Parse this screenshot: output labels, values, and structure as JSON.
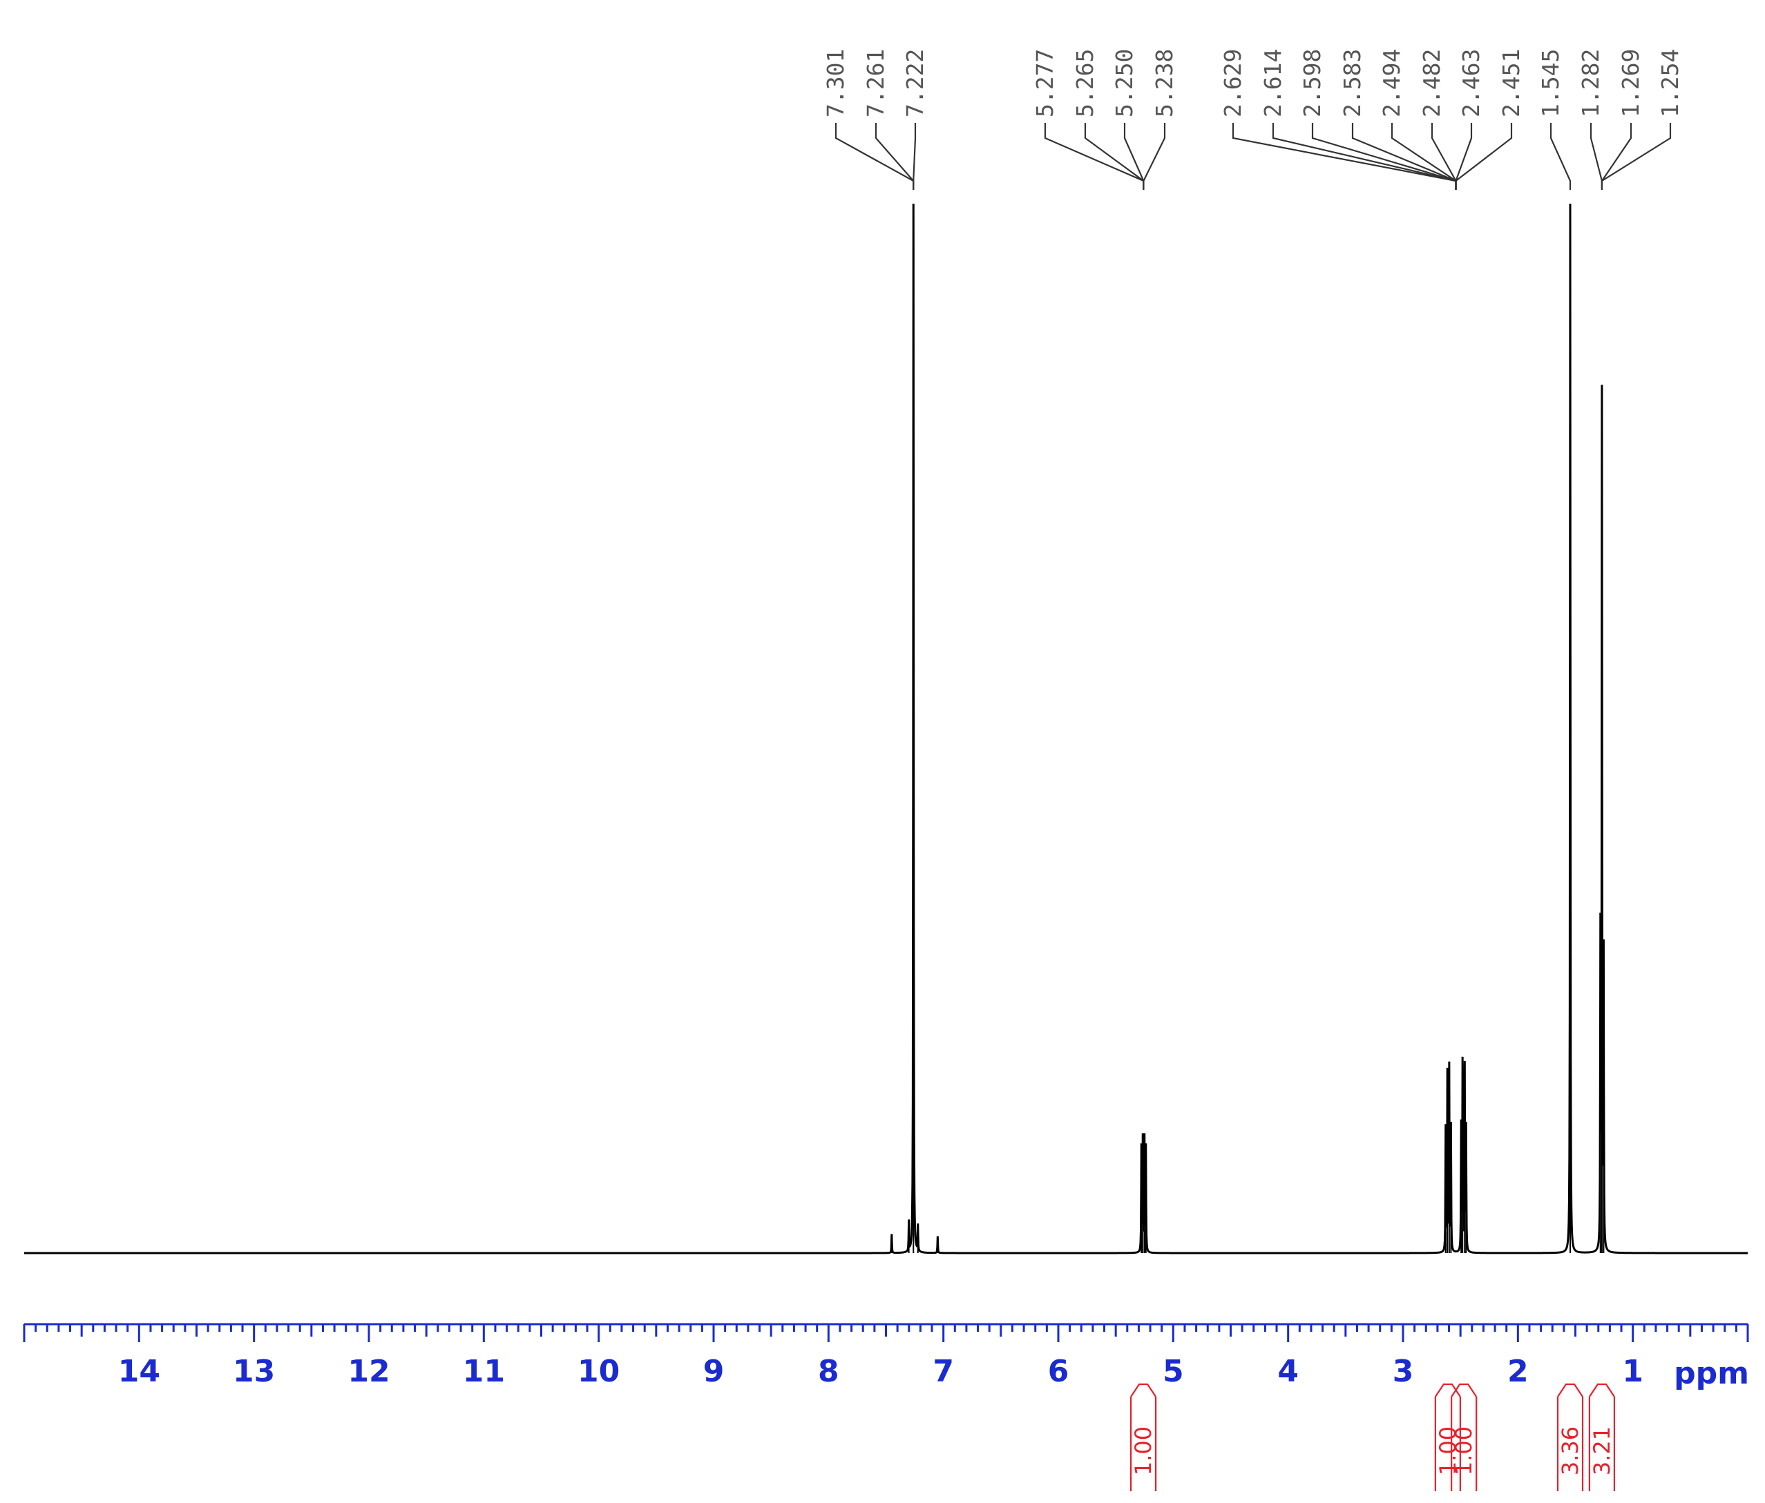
{
  "chart_data": {
    "type": "line",
    "title": "",
    "xlabel": "",
    "ylabel": "",
    "x_unit": "ppm",
    "xlim": [
      15.0,
      0.0
    ],
    "x_reversed": true,
    "x_ticks": [
      "14",
      "13",
      "12",
      "11",
      "10",
      "9",
      "8",
      "7",
      "6",
      "5",
      "4",
      "3",
      "2",
      "1"
    ],
    "grid": false,
    "legend": "none",
    "series": [
      {
        "peaks": [
          {
            "ppm": 7.45,
            "height": 0.018
          },
          {
            "ppm": 7.301,
            "height": 0.028
          },
          {
            "ppm": 7.261,
            "height": 1.0
          },
          {
            "ppm": 7.222,
            "height": 0.025
          },
          {
            "ppm": 7.05,
            "height": 0.016
          },
          {
            "ppm": 5.277,
            "height": 0.1
          },
          {
            "ppm": 5.265,
            "height": 0.108
          },
          {
            "ppm": 5.25,
            "height": 0.108
          },
          {
            "ppm": 5.238,
            "height": 0.1
          },
          {
            "ppm": 2.629,
            "height": 0.118
          },
          {
            "ppm": 2.614,
            "height": 0.17
          },
          {
            "ppm": 2.598,
            "height": 0.176
          },
          {
            "ppm": 2.583,
            "height": 0.12
          },
          {
            "ppm": 2.494,
            "height": 0.12
          },
          {
            "ppm": 2.482,
            "height": 0.18
          },
          {
            "ppm": 2.463,
            "height": 0.176
          },
          {
            "ppm": 2.451,
            "height": 0.118
          },
          {
            "ppm": 1.545,
            "height": 1.0
          },
          {
            "ppm": 1.282,
            "height": 0.3
          },
          {
            "ppm": 1.269,
            "height": 0.813
          },
          {
            "ppm": 1.254,
            "height": 0.28
          }
        ]
      }
    ],
    "peak_labels": [
      {
        "group": "g1",
        "values": [
          "7.301",
          "7.261",
          "7.222"
        ],
        "anchor_ppm": 7.261
      },
      {
        "group": "g2",
        "values": [
          "5.277",
          "5.265",
          "5.250",
          "5.238"
        ],
        "anchor_ppm": 5.258
      },
      {
        "group": "g3",
        "values": [
          "2.629",
          "2.614",
          "2.598",
          "2.583",
          "2.494",
          "2.482",
          "2.463",
          "2.451"
        ],
        "anchor_ppm": 2.54
      },
      {
        "group": "g4",
        "values": [
          "1.545"
        ],
        "anchor_ppm": 1.545
      },
      {
        "group": "g5",
        "values": [
          "1.282",
          "1.269",
          "1.254"
        ],
        "anchor_ppm": 1.269
      }
    ],
    "integrals": [
      {
        "ppm": 5.26,
        "value": "1.00"
      },
      {
        "ppm": 2.61,
        "value": "1.00"
      },
      {
        "ppm": 2.47,
        "value": "1.00"
      },
      {
        "ppm": 1.545,
        "value": "3.36"
      },
      {
        "ppm": 1.269,
        "value": "3.21"
      }
    ],
    "colors": {
      "trace": "#000000",
      "axis": "#1a2bd0",
      "integral": "#e8202a",
      "peak_label": "#555555"
    }
  }
}
